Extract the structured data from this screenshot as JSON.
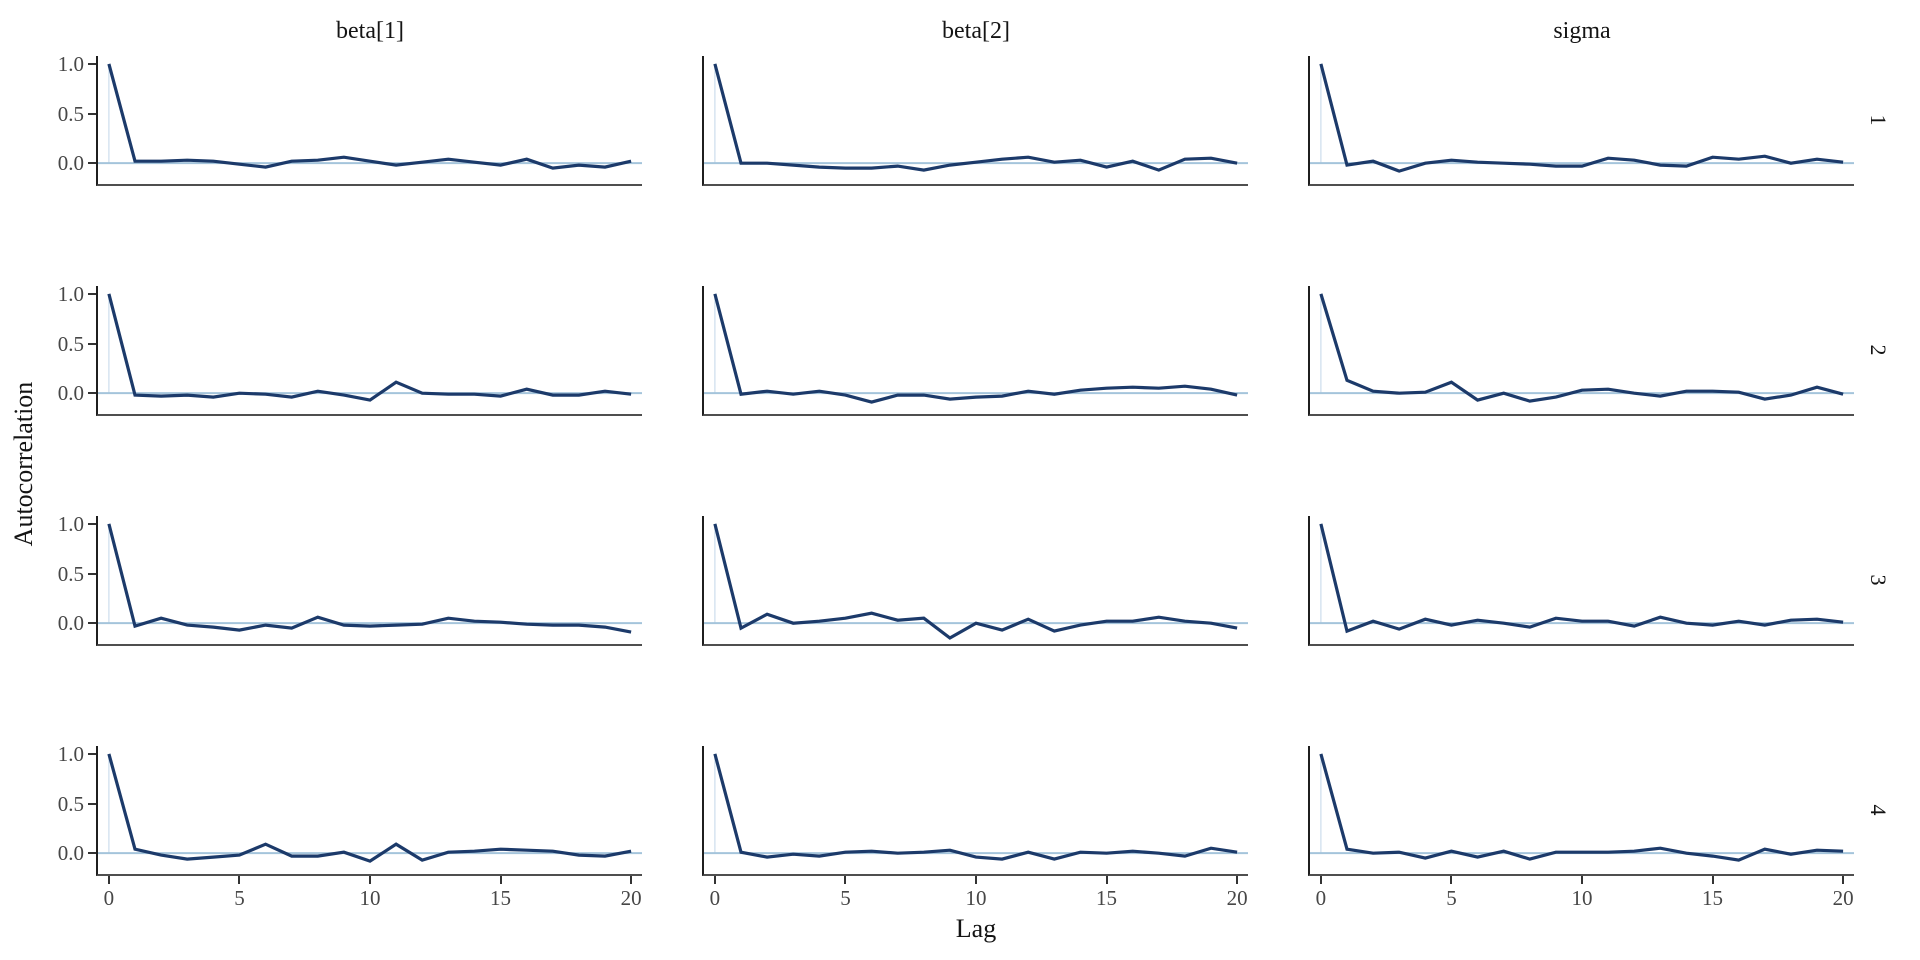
{
  "chart_data": {
    "type": "line",
    "title": "",
    "xlabel": "Lag",
    "ylabel": "Autocorrelation",
    "facet_columns": [
      "beta[1]",
      "beta[2]",
      "sigma"
    ],
    "facet_rows": [
      "1",
      "2",
      "3",
      "4"
    ],
    "x_ticks": [
      "0",
      "5",
      "10",
      "15",
      "20"
    ],
    "x_tick_values": [
      0,
      5,
      10,
      15,
      20
    ],
    "y_ticks": [
      "1.0",
      "0.5",
      "0.0"
    ],
    "y_tick_values": [
      1.0,
      0.5,
      0.0
    ],
    "xlim": [
      0,
      20
    ],
    "ylim": [
      -0.21,
      1.08
    ],
    "grid": "off",
    "legend": "none",
    "lags": [
      0,
      1,
      2,
      3,
      4,
      5,
      6,
      7,
      8,
      9,
      10,
      11,
      12,
      13,
      14,
      15,
      16,
      17,
      18,
      19,
      20
    ],
    "series": [
      {
        "col": "beta[1]",
        "row": "1",
        "values": [
          1.0,
          0.02,
          0.02,
          0.03,
          0.02,
          -0.01,
          -0.04,
          0.02,
          0.03,
          0.06,
          0.02,
          -0.02,
          0.01,
          0.04,
          0.01,
          -0.02,
          0.04,
          -0.05,
          -0.02,
          -0.04,
          0.02
        ]
      },
      {
        "col": "beta[2]",
        "row": "1",
        "values": [
          1.0,
          0.0,
          0.0,
          -0.02,
          -0.04,
          -0.05,
          -0.05,
          -0.03,
          -0.07,
          -0.02,
          0.01,
          0.04,
          0.06,
          0.01,
          0.03,
          -0.04,
          0.02,
          -0.07,
          0.04,
          0.05,
          0.0
        ]
      },
      {
        "col": "sigma",
        "row": "1",
        "values": [
          1.0,
          -0.02,
          0.02,
          -0.08,
          0.0,
          0.03,
          0.01,
          0.0,
          -0.01,
          -0.03,
          -0.03,
          0.05,
          0.03,
          -0.02,
          -0.03,
          0.06,
          0.04,
          0.07,
          0.0,
          0.04,
          0.01
        ]
      },
      {
        "col": "beta[1]",
        "row": "2",
        "values": [
          1.0,
          -0.02,
          -0.03,
          -0.02,
          -0.04,
          0.0,
          -0.01,
          -0.04,
          0.02,
          -0.02,
          -0.07,
          0.11,
          0.0,
          -0.01,
          -0.01,
          -0.03,
          0.04,
          -0.02,
          -0.02,
          0.02,
          -0.01
        ]
      },
      {
        "col": "beta[2]",
        "row": "2",
        "values": [
          1.0,
          -0.01,
          0.02,
          -0.01,
          0.02,
          -0.02,
          -0.09,
          -0.02,
          -0.02,
          -0.06,
          -0.04,
          -0.03,
          0.02,
          -0.01,
          0.03,
          0.05,
          0.06,
          0.05,
          0.07,
          0.04,
          -0.02
        ]
      },
      {
        "col": "sigma",
        "row": "2",
        "values": [
          1.0,
          0.13,
          0.02,
          0.0,
          0.01,
          0.11,
          -0.07,
          0.0,
          -0.08,
          -0.04,
          0.03,
          0.04,
          0.0,
          -0.03,
          0.02,
          0.02,
          0.01,
          -0.06,
          -0.02,
          0.06,
          -0.01
        ]
      },
      {
        "col": "beta[1]",
        "row": "3",
        "values": [
          1.0,
          -0.03,
          0.05,
          -0.02,
          -0.04,
          -0.07,
          -0.02,
          -0.05,
          0.06,
          -0.02,
          -0.03,
          -0.02,
          -0.01,
          0.05,
          0.02,
          0.01,
          -0.01,
          -0.02,
          -0.02,
          -0.04,
          -0.09
        ]
      },
      {
        "col": "beta[2]",
        "row": "3",
        "values": [
          1.0,
          -0.05,
          0.09,
          0.0,
          0.02,
          0.05,
          0.1,
          0.03,
          0.05,
          -0.15,
          0.0,
          -0.07,
          0.04,
          -0.08,
          -0.02,
          0.02,
          0.02,
          0.06,
          0.02,
          0.0,
          -0.05
        ]
      },
      {
        "col": "sigma",
        "row": "3",
        "values": [
          1.0,
          -0.08,
          0.02,
          -0.06,
          0.04,
          -0.02,
          0.03,
          0.0,
          -0.04,
          0.05,
          0.02,
          0.02,
          -0.03,
          0.06,
          0.0,
          -0.02,
          0.02,
          -0.02,
          0.03,
          0.04,
          0.01
        ]
      },
      {
        "col": "beta[1]",
        "row": "4",
        "values": [
          1.0,
          0.04,
          -0.02,
          -0.06,
          -0.04,
          -0.02,
          0.09,
          -0.03,
          -0.03,
          0.01,
          -0.08,
          0.09,
          -0.07,
          0.01,
          0.02,
          0.04,
          0.03,
          0.02,
          -0.02,
          -0.03,
          0.02
        ]
      },
      {
        "col": "beta[2]",
        "row": "4",
        "values": [
          1.0,
          0.01,
          -0.04,
          -0.01,
          -0.03,
          0.01,
          0.02,
          0.0,
          0.01,
          0.03,
          -0.04,
          -0.06,
          0.01,
          -0.06,
          0.01,
          0.0,
          0.02,
          0.0,
          -0.03,
          0.05,
          0.01
        ]
      },
      {
        "col": "sigma",
        "row": "4",
        "values": [
          1.0,
          0.04,
          0.0,
          0.01,
          -0.05,
          0.02,
          -0.04,
          0.02,
          -0.06,
          0.01,
          0.01,
          0.01,
          0.02,
          0.05,
          0.0,
          -0.03,
          -0.07,
          0.04,
          -0.01,
          0.03,
          0.02
        ]
      }
    ],
    "colors": {
      "acf_line": "#1c3a6a",
      "zero_line": "#a4c4db",
      "lag0_line": "#d3e2ef",
      "left_spine": "#1f1f1f",
      "bottom_spine": "#4f4f4f",
      "tick_text": "#474747",
      "title_text": "#141414"
    }
  }
}
